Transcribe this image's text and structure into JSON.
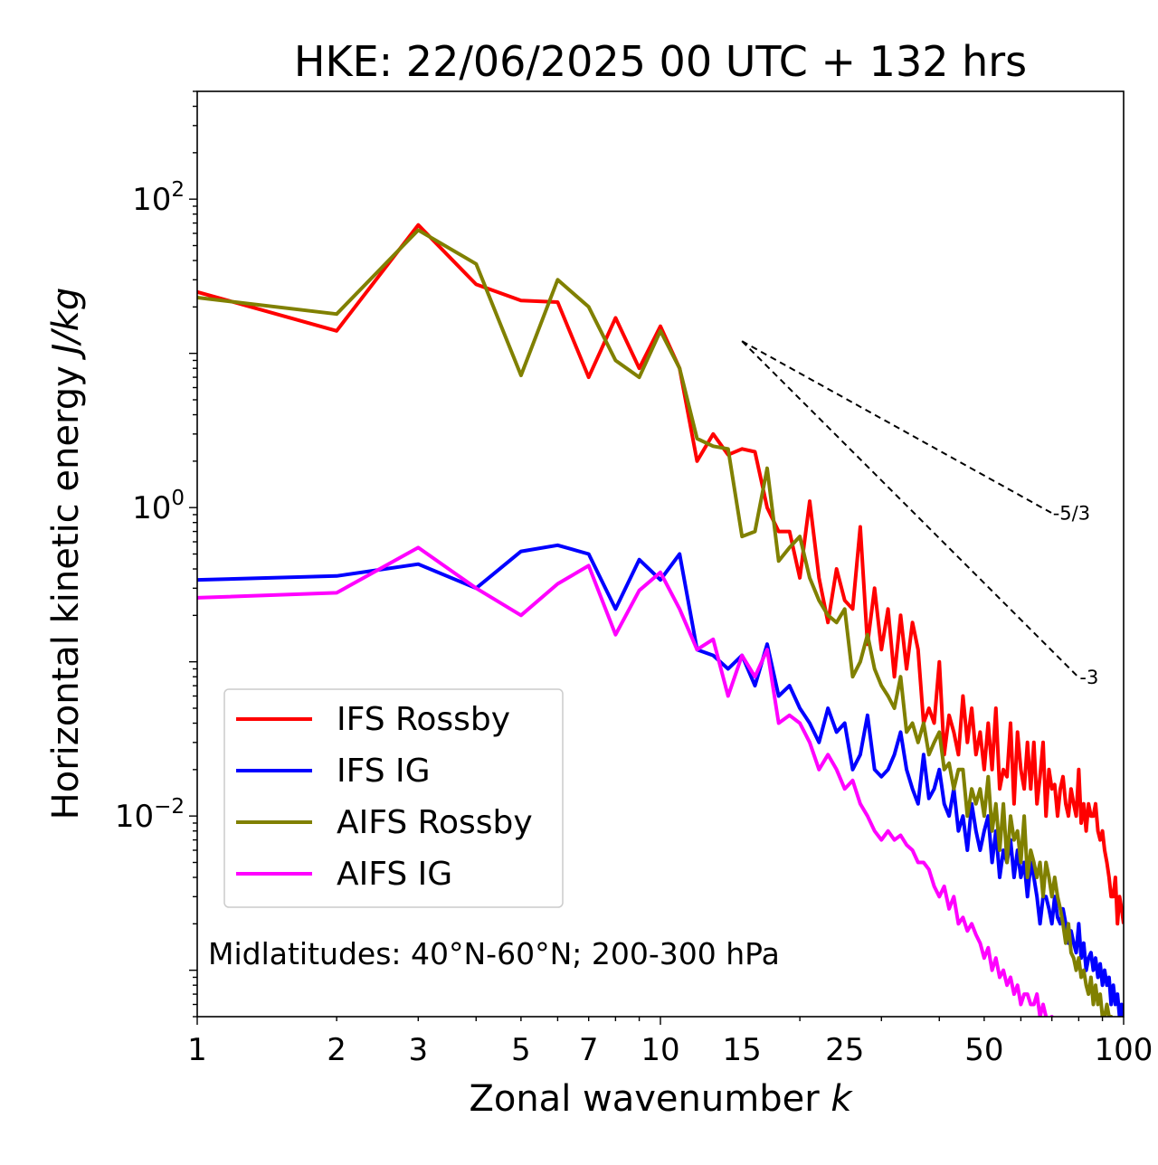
{
  "chart_data": {
    "type": "line",
    "title": "HKE: 22/06/2025 00 UTC + 132 hrs",
    "xlabel": "Zonal wavenumber ",
    "xlabel_italic": "k",
    "ylabel": "Horizontal kinetic energy ",
    "ylabel_italic": "J/kg",
    "xscale": "log",
    "yscale": "log",
    "xlim": [
      1,
      100
    ],
    "ylim": [
      0.0005,
      500
    ],
    "grid": false,
    "legend_position": "lower-left",
    "annotation": "Midlatitudes: 40°N-60°N; 200-300 hPa",
    "x_ticks": [
      1,
      2,
      3,
      5,
      7,
      10,
      15,
      25,
      50,
      100
    ],
    "x_tick_labels": [
      "1",
      "2",
      "3",
      "5",
      "7",
      "10",
      "15",
      "25",
      "50",
      "100"
    ],
    "y_ticks": [
      {
        "value": 0.01,
        "base": "10",
        "exp": "−2"
      },
      {
        "value": 1,
        "base": "10",
        "exp": "0"
      },
      {
        "value": 100,
        "base": "10",
        "exp": "2"
      }
    ],
    "reference_slopes": [
      {
        "label": "-5/3",
        "slope": -1.6667,
        "x_start": 15,
        "x_end": 70,
        "y_start": 12
      },
      {
        "label": "-3",
        "slope": -3,
        "x_start": 15,
        "x_end": 80,
        "y_start": 12
      }
    ],
    "series": [
      {
        "name": "IFS Rossby",
        "color": "#ff0000",
        "x": [
          1,
          2,
          3,
          4,
          5,
          6,
          7,
          8,
          9,
          10,
          11,
          12,
          13,
          14,
          15,
          16,
          17,
          18,
          19,
          20,
          21,
          22,
          23,
          24,
          25,
          26,
          27,
          28,
          29,
          30,
          31,
          32,
          33,
          34,
          35,
          36,
          37,
          38,
          39,
          40,
          41,
          42,
          43,
          44,
          45,
          46,
          47,
          48,
          49,
          50,
          51,
          52,
          53,
          54,
          55,
          56,
          57,
          58,
          59,
          60,
          61,
          62,
          63,
          64,
          65,
          66,
          67,
          68,
          69,
          70,
          71,
          72,
          73,
          74,
          75,
          76,
          77,
          78,
          79,
          80,
          81,
          82,
          83,
          84,
          85,
          86,
          87,
          88,
          89,
          90,
          91,
          92,
          93,
          94,
          95,
          96,
          97,
          98,
          99,
          100
        ],
        "y": [
          25,
          14,
          68,
          28,
          22,
          21.5,
          7,
          17,
          8,
          15,
          8,
          2,
          3,
          2.2,
          2.4,
          2.3,
          1.0,
          0.7,
          0.7,
          0.35,
          1.1,
          0.35,
          0.18,
          0.4,
          0.25,
          0.22,
          0.75,
          0.13,
          0.3,
          0.12,
          0.22,
          0.08,
          0.2,
          0.09,
          0.18,
          0.12,
          0.04,
          0.05,
          0.04,
          0.1,
          0.025,
          0.045,
          0.035,
          0.025,
          0.06,
          0.03,
          0.05,
          0.025,
          0.035,
          0.02,
          0.04,
          0.02,
          0.05,
          0.015,
          0.02,
          0.018,
          0.04,
          0.012,
          0.035,
          0.02,
          0.015,
          0.03,
          0.015,
          0.03,
          0.012,
          0.018,
          0.03,
          0.01,
          0.02,
          0.015,
          0.016,
          0.01,
          0.015,
          0.018,
          0.012,
          0.01,
          0.015,
          0.012,
          0.01,
          0.02,
          0.009,
          0.012,
          0.008,
          0.012,
          0.01,
          0.01,
          0.012,
          0.008,
          0.007,
          0.008,
          0.006,
          0.005,
          0.004,
          0.003,
          0.003,
          0.004,
          0.002,
          0.003,
          0.0025,
          0.002
        ]
      },
      {
        "name": "IFS IG",
        "color": "#0000ff",
        "x": [
          1,
          2,
          3,
          4,
          5,
          6,
          7,
          8,
          9,
          10,
          11,
          12,
          13,
          14,
          15,
          16,
          17,
          18,
          19,
          20,
          21,
          22,
          23,
          24,
          25,
          26,
          27,
          28,
          29,
          30,
          31,
          32,
          33,
          34,
          35,
          36,
          37,
          38,
          39,
          40,
          41,
          42,
          43,
          44,
          45,
          46,
          47,
          48,
          49,
          50,
          51,
          52,
          53,
          54,
          55,
          56,
          57,
          58,
          59,
          60,
          61,
          62,
          63,
          64,
          65,
          66,
          67,
          68,
          69,
          70,
          71,
          72,
          73,
          74,
          75,
          76,
          77,
          78,
          79,
          80,
          81,
          82,
          83,
          84,
          85,
          86,
          87,
          88,
          89,
          90,
          91,
          92,
          93,
          94,
          95,
          96,
          97,
          98,
          99,
          100
        ],
        "y": [
          0.34,
          0.36,
          0.43,
          0.3,
          0.52,
          0.57,
          0.5,
          0.22,
          0.46,
          0.34,
          0.5,
          0.12,
          0.11,
          0.09,
          0.11,
          0.07,
          0.13,
          0.06,
          0.07,
          0.05,
          0.04,
          0.03,
          0.05,
          0.035,
          0.04,
          0.02,
          0.025,
          0.045,
          0.02,
          0.018,
          0.02,
          0.025,
          0.035,
          0.02,
          0.015,
          0.012,
          0.025,
          0.013,
          0.015,
          0.02,
          0.012,
          0.01,
          0.015,
          0.008,
          0.01,
          0.006,
          0.012,
          0.008,
          0.006,
          0.008,
          0.01,
          0.005,
          0.008,
          0.004,
          0.006,
          0.005,
          0.007,
          0.004,
          0.006,
          0.004,
          0.005,
          0.003,
          0.005,
          0.004,
          0.003,
          0.002,
          0.003,
          0.003,
          0.0025,
          0.002,
          0.003,
          0.0022,
          0.002,
          0.0025,
          0.002,
          0.0015,
          0.0018,
          0.0015,
          0.0013,
          0.002,
          0.0012,
          0.0015,
          0.001,
          0.0012,
          0.0013,
          0.001,
          0.0012,
          0.0009,
          0.0011,
          0.0008,
          0.001,
          0.0008,
          0.0009,
          0.0006,
          0.0008,
          0.0006,
          0.0007,
          0.0005,
          0.0006,
          0.0005
        ]
      },
      {
        "name": "AIFS Rossby",
        "color": "#808000",
        "x": [
          1,
          2,
          3,
          4,
          5,
          6,
          7,
          8,
          9,
          10,
          11,
          12,
          13,
          14,
          15,
          16,
          17,
          18,
          19,
          20,
          21,
          22,
          23,
          24,
          25,
          26,
          27,
          28,
          29,
          30,
          31,
          32,
          33,
          34,
          35,
          36,
          37,
          38,
          39,
          40,
          41,
          42,
          43,
          44,
          45,
          46,
          47,
          48,
          49,
          50,
          51,
          52,
          53,
          54,
          55,
          56,
          57,
          58,
          59,
          60,
          61,
          62,
          63,
          64,
          65,
          66,
          67,
          68,
          69,
          70,
          71,
          72,
          73,
          74,
          75,
          76,
          77,
          78,
          79,
          80,
          81,
          82,
          83,
          84,
          85,
          86,
          87,
          88,
          89,
          90,
          91,
          92,
          93,
          94,
          95,
          96,
          97,
          98,
          99,
          100
        ],
        "y": [
          23,
          18,
          63,
          38,
          7.2,
          30,
          20,
          9,
          7,
          14,
          8,
          2.8,
          2.5,
          2.4,
          0.65,
          0.7,
          1.8,
          0.45,
          0.55,
          0.65,
          0.35,
          0.25,
          0.2,
          0.18,
          0.22,
          0.08,
          0.1,
          0.15,
          0.09,
          0.07,
          0.06,
          0.05,
          0.08,
          0.035,
          0.04,
          0.03,
          0.04,
          0.025,
          0.03,
          0.035,
          0.02,
          0.022,
          0.015,
          0.02,
          0.02,
          0.01,
          0.015,
          0.012,
          0.015,
          0.01,
          0.018,
          0.008,
          0.012,
          0.006,
          0.012,
          0.005,
          0.01,
          0.007,
          0.008,
          0.005,
          0.01,
          0.004,
          0.006,
          0.005,
          0.004,
          0.005,
          0.003,
          0.005,
          0.004,
          0.003,
          0.004,
          0.003,
          0.0025,
          0.002,
          0.0015,
          0.002,
          0.0013,
          0.0012,
          0.001,
          0.0012,
          0.0009,
          0.001,
          0.0008,
          0.0007,
          0.0009,
          0.0006,
          0.0008,
          0.0006,
          0.0007,
          0.0005,
          0.0005,
          0.0006,
          0.0005,
          0.0005,
          0.0004,
          0.0004,
          0.0004,
          0.0003,
          0.0003,
          0.0003
        ]
      },
      {
        "name": "AIFS IG",
        "color": "#ff00ff",
        "x": [
          1,
          2,
          3,
          4,
          5,
          6,
          7,
          8,
          9,
          10,
          11,
          12,
          13,
          14,
          15,
          16,
          17,
          18,
          19,
          20,
          21,
          22,
          23,
          24,
          25,
          26,
          27,
          28,
          29,
          30,
          31,
          32,
          33,
          34,
          35,
          36,
          37,
          38,
          39,
          40,
          41,
          42,
          43,
          44,
          45,
          46,
          47,
          48,
          49,
          50,
          51,
          52,
          53,
          54,
          55,
          56,
          57,
          58,
          59,
          60,
          61,
          62,
          63,
          64,
          65,
          66,
          67,
          68,
          69,
          70,
          71,
          72,
          73,
          74,
          75,
          76,
          77,
          78,
          79,
          80,
          81,
          82,
          83,
          84,
          85,
          86,
          87,
          88,
          89,
          90,
          91,
          92,
          93,
          94,
          95,
          96,
          97,
          98,
          99,
          100
        ],
        "y": [
          0.26,
          0.28,
          0.55,
          0.3,
          0.2,
          0.32,
          0.42,
          0.15,
          0.29,
          0.38,
          0.22,
          0.12,
          0.14,
          0.06,
          0.11,
          0.08,
          0.12,
          0.04,
          0.045,
          0.04,
          0.03,
          0.02,
          0.025,
          0.02,
          0.015,
          0.017,
          0.012,
          0.01,
          0.008,
          0.007,
          0.008,
          0.007,
          0.0075,
          0.0065,
          0.006,
          0.005,
          0.005,
          0.0045,
          0.0035,
          0.003,
          0.0035,
          0.0025,
          0.003,
          0.002,
          0.0022,
          0.0018,
          0.002,
          0.0017,
          0.0015,
          0.0012,
          0.0014,
          0.001,
          0.0012,
          0.0009,
          0.001,
          0.0008,
          0.0009,
          0.0007,
          0.0008,
          0.0006,
          0.0007,
          0.0007,
          0.0006,
          0.0006,
          0.0007,
          0.0005,
          0.0006,
          0.0005,
          0.0004,
          0.0005,
          0.0004,
          0.0004,
          0.0004,
          0.0003,
          0.0003,
          0.0003,
          0.0003,
          0.0003,
          0.0003,
          0.0003,
          0.0003,
          0.0003,
          0.0003,
          0.0003,
          0.0003,
          0.0003,
          0.0003,
          0.0003,
          0.0003,
          0.0003,
          0.0003,
          0.0003,
          0.0003,
          0.0003,
          0.0003,
          0.0003,
          0.0003,
          0.0003,
          0.0003,
          0.0003
        ]
      }
    ]
  }
}
